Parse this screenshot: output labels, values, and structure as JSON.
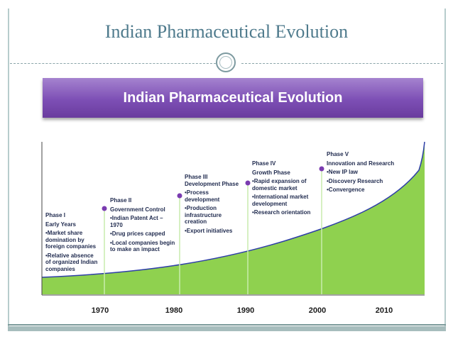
{
  "slide_title": "Indian Pharmaceutical Evolution",
  "banner_title": "Indian Pharmaceutical Evolution",
  "colors": {
    "curve_fill": "#8fd14f",
    "curve_line": "#2e3ea8",
    "marker": "#7a3bb0",
    "banner": "#7d4fb5"
  },
  "phases": [
    {
      "title": "Phase I",
      "name": "Early Years",
      "bullets": [
        "•Market share domination by foreign companies",
        "•Relative absence of organized Indian companies"
      ]
    },
    {
      "title": "Phase II",
      "name": "Government Control",
      "bullets": [
        "•Indian Patent Act – 1970",
        "•Drug prices capped",
        "•Local companies begin to make an impact"
      ]
    },
    {
      "title": "Phase III",
      "name": "Development Phase",
      "bullets": [
        "•Process development",
        "•Production infrastructure creation",
        "•Export initiatives"
      ]
    },
    {
      "title": "Phase IV",
      "name": "Growth Phase",
      "bullets": [
        "•Rapid expansion of domestic market",
        "•International market development",
        "•Research orientation"
      ]
    },
    {
      "title": "Phase V",
      "name": "Innovation and Research",
      "bullets": [
        "•New IP law",
        "•Discovery Research",
        "•Convergence"
      ]
    }
  ],
  "years": [
    "1970",
    "1980",
    "1990",
    "2000",
    "2010"
  ]
}
